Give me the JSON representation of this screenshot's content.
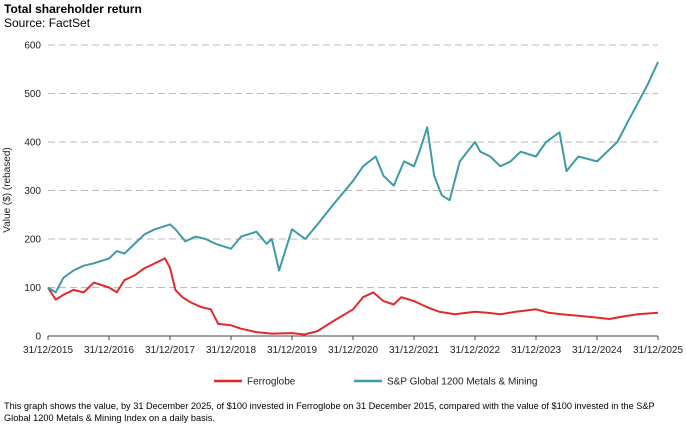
{
  "header": {
    "title": "Total shareholder return",
    "subtitle": "Source: FactSet"
  },
  "footnote": "This graph shows the value, by 31 December 2025, of $100 invested in Ferroglobe on 31 December 2015, compared with the value of $100 invested in the S&P Global 1200 Metals & Mining Index on a daily basis.",
  "colors": {
    "ferroglobe": "#e02a2a",
    "sp_global": "#3e9aa6",
    "grid": "#bbbbbb"
  },
  "chart_data": {
    "type": "line",
    "title": "Total shareholder return",
    "subtitle": "Source: FactSet",
    "ylabel": "Value ($) (rebased)",
    "xlabel": "",
    "ylim": [
      0,
      600
    ],
    "yticks": [
      0,
      100,
      200,
      300,
      400,
      500,
      600
    ],
    "xlim": [
      "2015-12-31",
      "2025-12-31"
    ],
    "xticks": [
      "31/12/2015",
      "31/12/2016",
      "31/12/2017",
      "31/12/2018",
      "31/12/2019",
      "31/12/2020",
      "31/12/2021",
      "31/12/2022",
      "31/12/2023",
      "31/12/2024",
      "31/12/2025"
    ],
    "grid": "horizontal dashed",
    "legend_position": "bottom",
    "series": [
      {
        "name": "Ferroglobe",
        "color": "#e02a2a",
        "x": [
          "2015-12-31",
          "2016-02-15",
          "2016-04-01",
          "2016-06-01",
          "2016-08-01",
          "2016-10-01",
          "2016-12-31",
          "2017-02-15",
          "2017-04-01",
          "2017-06-01",
          "2017-08-01",
          "2017-10-01",
          "2017-12-01",
          "2017-12-31",
          "2018-02-01",
          "2018-03-15",
          "2018-05-01",
          "2018-07-01",
          "2018-09-01",
          "2018-10-15",
          "2018-12-31",
          "2019-03-01",
          "2019-06-01",
          "2019-09-01",
          "2019-12-31",
          "2020-03-15",
          "2020-06-01",
          "2020-09-01",
          "2020-12-31",
          "2021-03-01",
          "2021-05-01",
          "2021-07-01",
          "2021-09-01",
          "2021-10-15",
          "2021-12-31",
          "2022-03-15",
          "2022-06-01",
          "2022-09-01",
          "2022-12-31",
          "2023-03-15",
          "2023-06-01",
          "2023-09-01",
          "2023-12-31",
          "2024-03-15",
          "2024-06-01",
          "2024-09-01",
          "2024-12-31",
          "2025-03-15",
          "2025-06-01",
          "2025-09-01",
          "2025-12-31"
        ],
        "values": [
          100,
          75,
          85,
          95,
          90,
          110,
          100,
          90,
          115,
          125,
          140,
          150,
          160,
          140,
          95,
          80,
          70,
          60,
          55,
          25,
          22,
          15,
          8,
          5,
          6,
          3,
          10,
          30,
          55,
          80,
          90,
          72,
          65,
          80,
          72,
          60,
          50,
          45,
          50,
          48,
          45,
          50,
          55,
          48,
          45,
          42,
          38,
          35,
          40,
          45,
          48
        ]
      },
      {
        "name": "S&P Global 1200 Metals & Mining",
        "color": "#3e9aa6",
        "x": [
          "2015-12-31",
          "2016-02-15",
          "2016-04-01",
          "2016-06-01",
          "2016-08-01",
          "2016-10-01",
          "2016-12-31",
          "2017-02-15",
          "2017-04-01",
          "2017-06-01",
          "2017-08-01",
          "2017-10-01",
          "2017-12-31",
          "2018-02-01",
          "2018-04-01",
          "2018-06-01",
          "2018-08-01",
          "2018-10-01",
          "2018-12-31",
          "2019-03-01",
          "2019-06-01",
          "2019-08-01",
          "2019-09-01",
          "2019-10-15",
          "2019-12-31",
          "2020-03-20",
          "2020-06-01",
          "2020-09-01",
          "2020-12-31",
          "2021-03-01",
          "2021-05-15",
          "2021-07-01",
          "2021-09-01",
          "2021-11-01",
          "2021-12-31",
          "2022-02-01",
          "2022-03-20",
          "2022-05-01",
          "2022-06-15",
          "2022-08-01",
          "2022-10-01",
          "2022-12-31",
          "2023-02-01",
          "2023-04-01",
          "2023-06-01",
          "2023-08-01",
          "2023-10-01",
          "2023-12-31",
          "2024-03-01",
          "2024-05-20",
          "2024-07-01",
          "2024-09-10",
          "2024-12-31",
          "2025-03-01",
          "2025-05-01",
          "2025-07-01",
          "2025-09-01",
          "2025-11-01",
          "2025-12-31"
        ],
        "values": [
          100,
          90,
          120,
          135,
          145,
          150,
          160,
          175,
          170,
          190,
          210,
          220,
          230,
          220,
          195,
          205,
          200,
          190,
          180,
          205,
          215,
          190,
          200,
          135,
          220,
          200,
          230,
          270,
          320,
          350,
          370,
          330,
          310,
          360,
          350,
          380,
          430,
          330,
          290,
          280,
          360,
          400,
          380,
          370,
          350,
          360,
          380,
          370,
          400,
          420,
          340,
          370,
          360,
          380,
          400,
          440,
          480,
          520,
          565
        ]
      }
    ]
  }
}
